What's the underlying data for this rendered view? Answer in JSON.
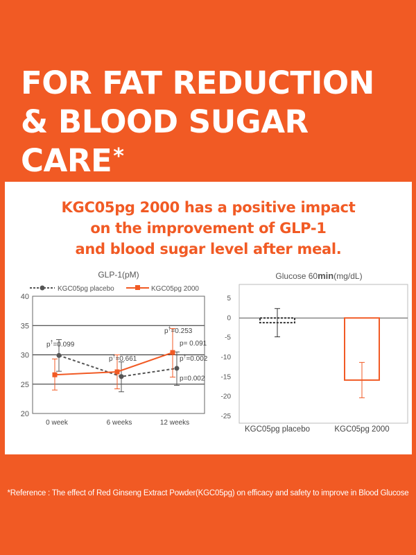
{
  "headline": {
    "line1": "FOR FAT REDUCTION",
    "line2": "& BLOOD SUGAR CARE",
    "asterisk": "*"
  },
  "subheadline": [
    "KGC05pg 2000 has a positive impact",
    "on the improvement of GLP-1",
    "and blood sugar level after meal."
  ],
  "colors": {
    "background": "#f15a24",
    "panel": "#ffffff",
    "accent": "#f15a24",
    "placebo": "#555555"
  },
  "chart_data": [
    {
      "type": "line",
      "title": "GLP-1(pM)",
      "categories": [
        "0 week",
        "6 weeks",
        "12 weeks"
      ],
      "ylim": [
        20,
        40
      ],
      "yticks": [
        "20",
        "25",
        "30",
        "35",
        "40"
      ],
      "grid": true,
      "legend_position": "top",
      "series": [
        {
          "name": "KGC05pg placebo",
          "values": [
            29.9,
            26.3,
            27.7
          ],
          "err_low": [
            27.2,
            23.7,
            24.8
          ],
          "err_high": [
            32.6,
            28.8,
            30.5
          ],
          "style": "dashed",
          "marker": "circle",
          "color": "#555555"
        },
        {
          "name": "KGC05pg 2000",
          "values": [
            26.6,
            27.1,
            30.4
          ],
          "err_low": [
            24.0,
            24.2,
            26.2
          ],
          "err_high": [
            29.3,
            30.0,
            34.5
          ],
          "style": "solid",
          "marker": "square",
          "color": "#f15a24"
        }
      ],
      "annotations": [
        {
          "text": "p=0.099",
          "sup": "†",
          "x": "0 week",
          "y": 31.4
        },
        {
          "text": "p=0.661",
          "sup": "†",
          "x": "6 weeks",
          "y": 29.0
        },
        {
          "text": "p=0.253",
          "sup": "†",
          "x": "12 weeks",
          "y": 33.7
        },
        {
          "text": "p= 0.091",
          "x": "12 weeks",
          "y": 31.6
        },
        {
          "text": "p=0.002",
          "sup": "†",
          "x": "12 weeks",
          "y": 29.0
        },
        {
          "text": "p=0.002",
          "x": "12 weeks",
          "y": 25.6
        }
      ]
    },
    {
      "type": "bar",
      "title": "Glucose 60min(mg/dL)",
      "title_parts": [
        "Glucose 60",
        "min",
        "(mg/dL)"
      ],
      "categories": [
        "KGC05pg placebo",
        "KGC05pg 2000"
      ],
      "values": [
        -1.2,
        -15.8
      ],
      "err_low": [
        -4.8,
        -20.3
      ],
      "err_high": [
        2.4,
        -11.3
      ],
      "ylim": [
        -25,
        5
      ],
      "yticks": [
        "5",
        "0",
        "-5",
        "-10",
        "-15",
        "-20",
        "-25"
      ],
      "styles": [
        "dashed-outline",
        "solid-outline"
      ],
      "colors": [
        "#333333",
        "#f15a24"
      ]
    }
  ],
  "reference": "*Reference : The effect of Red Ginseng Extract Powder(KGC05pg) on efficacy and safety to improve in Blood Glucose"
}
